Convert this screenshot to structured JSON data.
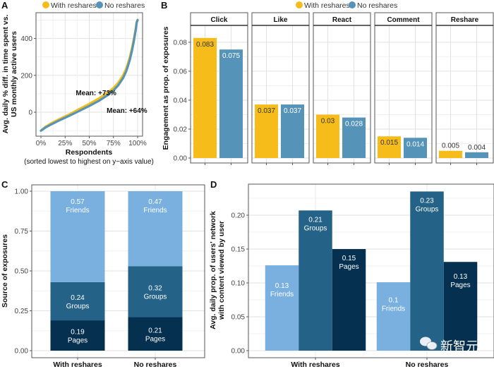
{
  "colors": {
    "with_reshares": "#F5BC1A",
    "no_reshares": "#5594B8",
    "friends": "#7AB0DF",
    "groups": "#256287",
    "pages": "#05304F",
    "grid": "#E6E6E6",
    "frame": "#555555"
  },
  "legend": {
    "items": [
      {
        "label": "With reshares",
        "color_key": "with_reshares"
      },
      {
        "label": "No reshares",
        "color_key": "no_reshares"
      }
    ]
  },
  "watermark": "新智元",
  "chart_data": [
    {
      "panel": "A",
      "type": "line",
      "xlabel": "Respondents",
      "xlabel_sub": "(sorted lowest to highest on y−axis value)",
      "ylabel": "Avg. daily % diff. in time spent vs. US monthly active users",
      "ylabel_lines": [
        "Avg. daily % diff. in time spent vs.",
        "US monthly active users"
      ],
      "xlim": [
        0,
        100
      ],
      "ylim": [
        -130,
        540
      ],
      "x_ticks": [
        0,
        25,
        50,
        75,
        100
      ],
      "x_tick_labels": [
        "0%",
        "25%",
        "50%",
        "75%",
        "100%"
      ],
      "y_ticks": [
        0,
        200,
        400
      ],
      "y_tick_labels": [
        "0",
        "200",
        "400"
      ],
      "grid": true,
      "legend_position": "top",
      "series": [
        {
          "name": "With reshares",
          "color_key": "with_reshares",
          "x": [
            0,
            5,
            10,
            20,
            30,
            40,
            50,
            60,
            70,
            75,
            80,
            85,
            88,
            90,
            92,
            94,
            96,
            98,
            99,
            100
          ],
          "y": [
            -100,
            -78,
            -62,
            -35,
            -10,
            18,
            45,
            75,
            110,
            132,
            160,
            200,
            235,
            265,
            300,
            345,
            395,
            455,
            490,
            500
          ]
        },
        {
          "name": "No reshares",
          "color_key": "no_reshares",
          "x": [
            0,
            5,
            10,
            20,
            30,
            40,
            50,
            60,
            70,
            75,
            80,
            85,
            88,
            90,
            92,
            94,
            96,
            98,
            99,
            100
          ],
          "y": [
            -100,
            -82,
            -68,
            -42,
            -18,
            8,
            34,
            62,
            96,
            118,
            146,
            185,
            220,
            250,
            285,
            330,
            382,
            445,
            485,
            500
          ]
        }
      ],
      "annotations": [
        {
          "text": "Mean: +73%",
          "x": 36,
          "y": 105
        },
        {
          "text": "Mean: +64%",
          "x": 68,
          "y": 10
        }
      ]
    },
    {
      "panel": "B",
      "type": "bar",
      "ylabel": "Engagement as prop. of exposures",
      "ylim": [
        0,
        0.088
      ],
      "y_ticks": [
        0.0,
        0.02,
        0.04,
        0.06,
        0.08
      ],
      "y_tick_labels": [
        "0.00",
        "0.02",
        "0.04",
        "0.06",
        "0.08"
      ],
      "grid": true,
      "facets": [
        "Click",
        "Like",
        "React",
        "Comment",
        "Reshare"
      ],
      "series": [
        {
          "name": "With reshares",
          "color_key": "with_reshares",
          "values": [
            0.083,
            0.037,
            0.03,
            0.015,
            0.005
          ],
          "labels": [
            "0.083",
            "0.037",
            "0.03",
            "0.015",
            "0.005"
          ]
        },
        {
          "name": "No reshares",
          "color_key": "no_reshares",
          "values": [
            0.075,
            0.037,
            0.028,
            0.014,
            0.004
          ],
          "labels": [
            "0.075",
            "0.037",
            "0.028",
            "0.014",
            "0.004"
          ]
        }
      ]
    },
    {
      "panel": "C",
      "type": "bar",
      "stacked": true,
      "ylabel": "Source of exposures",
      "ylim": [
        0,
        1.0
      ],
      "y_ticks": [
        0.0,
        0.25,
        0.5,
        0.75,
        1.0
      ],
      "y_tick_labels": [
        "0.00",
        "0.25",
        "0.50",
        "0.75",
        "1.00"
      ],
      "grid": true,
      "categories": [
        "With reshares",
        "No reshares"
      ],
      "series": [
        {
          "name": "Pages",
          "color_key": "pages",
          "values": [
            0.19,
            0.21
          ],
          "labels": [
            "0.19",
            "0.21"
          ]
        },
        {
          "name": "Groups",
          "color_key": "groups",
          "values": [
            0.24,
            0.32
          ],
          "labels": [
            "0.24",
            "0.32"
          ]
        },
        {
          "name": "Friends",
          "color_key": "friends",
          "values": [
            0.57,
            0.47
          ],
          "labels": [
            "0.57",
            "0.47"
          ]
        }
      ]
    },
    {
      "panel": "D",
      "type": "bar",
      "ylabel": "Avg. daily prop. of users' network with content viewed by user",
      "ylabel_lines": [
        "Avg. daily prop. of users' network",
        "with content viewed by user"
      ],
      "ylim": [
        0,
        0.245
      ],
      "y_ticks": [
        0.0,
        0.05,
        0.1,
        0.15,
        0.2
      ],
      "y_tick_labels": [
        "0.00",
        "0.05",
        "0.10",
        "0.15",
        "0.20"
      ],
      "grid": true,
      "categories": [
        "With reshares",
        "No reshares"
      ],
      "series": [
        {
          "name": "Friends",
          "color_key": "friends",
          "values": [
            0.126,
            0.101
          ],
          "labels": [
            "0.13",
            "0.1"
          ]
        },
        {
          "name": "Groups",
          "color_key": "groups",
          "values": [
            0.207,
            0.235
          ],
          "labels": [
            "0.21",
            "0.23"
          ]
        },
        {
          "name": "Pages",
          "color_key": "pages",
          "values": [
            0.15,
            0.131
          ],
          "labels": [
            "0.15",
            "0.13"
          ]
        }
      ]
    }
  ]
}
